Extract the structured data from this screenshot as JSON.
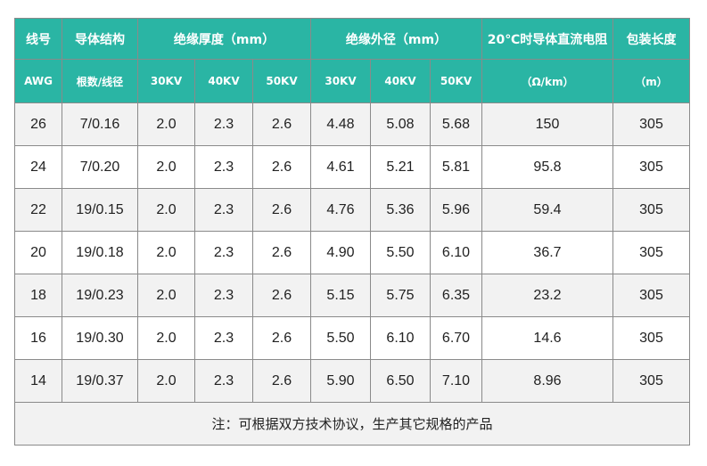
{
  "table": {
    "header_row1": {
      "gauge": "线号",
      "structure": "导体结构",
      "insulation_thickness": "绝缘厚度（mm）",
      "insulation_od": "绝缘外径（mm）",
      "resistance": "20℃时导体直流电阻",
      "package_length": "包装长度"
    },
    "header_row2": {
      "gauge": "AWG",
      "structure": "根数/线径",
      "thk_30": "30KV",
      "thk_40": "40KV",
      "thk_50": "50KV",
      "od_30": "30KV",
      "od_40": "40KV",
      "od_50": "50KV",
      "resistance_unit": "（Ω/km）",
      "length_unit": "（m）"
    },
    "rows": [
      [
        "26",
        "7/0.16",
        "2.0",
        "2.3",
        "2.6",
        "4.48",
        "5.08",
        "5.68",
        "150",
        "305"
      ],
      [
        "24",
        "7/0.20",
        "2.0",
        "2.3",
        "2.6",
        "4.61",
        "5.21",
        "5.81",
        "95.8",
        "305"
      ],
      [
        "22",
        "19/0.15",
        "2.0",
        "2.3",
        "2.6",
        "4.76",
        "5.36",
        "5.96",
        "59.4",
        "305"
      ],
      [
        "20",
        "19/0.18",
        "2.0",
        "2.3",
        "2.6",
        "4.90",
        "5.50",
        "6.10",
        "36.7",
        "305"
      ],
      [
        "18",
        "19/0.23",
        "2.0",
        "2.3",
        "2.6",
        "5.15",
        "5.75",
        "6.35",
        "23.2",
        "305"
      ],
      [
        "16",
        "19/0.30",
        "2.0",
        "2.3",
        "2.6",
        "5.50",
        "6.10",
        "6.70",
        "14.6",
        "305"
      ],
      [
        "14",
        "19/0.37",
        "2.0",
        "2.3",
        "2.6",
        "5.90",
        "6.50",
        "7.10",
        "8.96",
        "305"
      ]
    ],
    "footer_note": "注：可根据双方技术协议，生产其它规格的产品"
  },
  "colors": {
    "header_bg": "#2ab5a4",
    "header_text": "#ffffff",
    "row_alt_bg": "#f2f2f2",
    "border": "#8a8a8a"
  }
}
